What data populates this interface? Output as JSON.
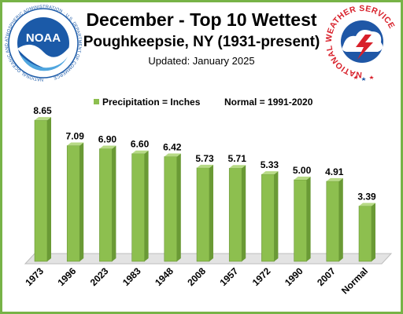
{
  "header": {
    "title": "December - Top 10 Wettest",
    "subtitle": "Poughkeepsie,  NY (1931-present)",
    "updated": "Updated:  January 2025"
  },
  "logos": {
    "noaa_text": "NOAA",
    "noaa_ring": "NATIONAL OCEANIC AND ATMOSPHERIC ADMINISTRATION · U.S. DEPARTMENT OF COMMERCE",
    "nws_ring": "NATIONAL WEATHER SERVICE"
  },
  "colors": {
    "border": "#77b347",
    "bar_front": "#8dbf4f",
    "bar_side": "#6a9a35",
    "bar_top": "#b7da86",
    "noaa_blue": "#1b5aa8",
    "nws_red": "#d8202a"
  },
  "chart_data": {
    "type": "bar",
    "categories": [
      "1973",
      "1996",
      "2023",
      "1983",
      "1948",
      "2008",
      "1957",
      "1972",
      "1990",
      "2007",
      "Normal"
    ],
    "values": [
      8.65,
      7.09,
      6.9,
      6.6,
      6.42,
      5.73,
      5.71,
      5.33,
      5.0,
      4.91,
      3.39
    ],
    "value_labels": [
      "8.65",
      "7.09",
      "6.90",
      "6.60",
      "6.42",
      "5.73",
      "5.71",
      "5.33",
      "5.00",
      "4.91",
      "3.39"
    ],
    "legend": [
      "Precipitation = Inches",
      "Normal = 1991-2020"
    ],
    "legend_position": "top",
    "ylim": [
      0,
      10
    ],
    "grid": false
  }
}
